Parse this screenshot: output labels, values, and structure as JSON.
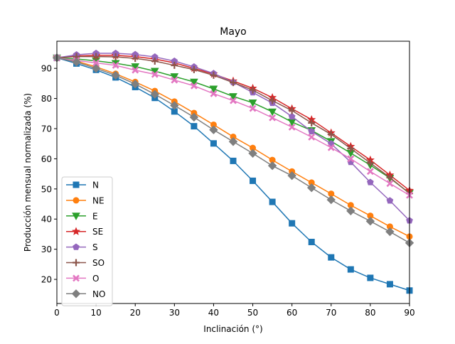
{
  "chart_data": {
    "type": "line",
    "title": "Mayo",
    "xlabel": "Inclinación (°)",
    "ylabel": "Producción mensual normalizada (%)",
    "xlim": [
      0,
      90
    ],
    "ylim": [
      12,
      99
    ],
    "x_ticks": [
      0,
      10,
      20,
      30,
      40,
      50,
      60,
      70,
      80,
      90
    ],
    "y_ticks": [
      20,
      30,
      40,
      50,
      60,
      70,
      80,
      90
    ],
    "grid": false,
    "legend_position": "lower-left",
    "x": [
      0,
      5,
      10,
      15,
      20,
      25,
      30,
      35,
      40,
      45,
      50,
      55,
      60,
      65,
      70,
      75,
      80,
      85,
      90
    ],
    "series": [
      {
        "name": "N",
        "color": "#1f77b4",
        "marker": "square",
        "values": [
          93.5,
          91.6,
          89.5,
          87.0,
          83.8,
          80.2,
          75.7,
          70.8,
          65.1,
          59.3,
          52.7,
          45.7,
          38.6,
          32.4,
          27.3,
          23.3,
          20.5,
          18.4,
          16.3
        ]
      },
      {
        "name": "NE",
        "color": "#ff7f0e",
        "marker": "circle",
        "values": [
          93.5,
          92.4,
          90.5,
          88.2,
          85.5,
          82.5,
          79.0,
          75.2,
          71.3,
          67.3,
          63.6,
          59.6,
          55.8,
          52.1,
          48.4,
          44.6,
          41.1,
          37.5,
          34.2
        ]
      },
      {
        "name": "E",
        "color": "#2ca02c",
        "marker": "triangle-down",
        "values": [
          93.5,
          93.1,
          92.5,
          91.7,
          90.6,
          89.1,
          87.3,
          85.5,
          83.2,
          80.7,
          78.6,
          75.6,
          72.2,
          69.4,
          65.8,
          61.9,
          57.9,
          53.6,
          48.6
        ]
      },
      {
        "name": "SE",
        "color": "#d62728",
        "marker": "star",
        "values": [
          93.5,
          94.1,
          94.3,
          94.3,
          93.9,
          93.1,
          91.8,
          90.0,
          88.1,
          85.8,
          83.4,
          80.3,
          76.6,
          73.0,
          68.6,
          64.1,
          59.6,
          54.6,
          49.5
        ]
      },
      {
        "name": "S",
        "color": "#9467bd",
        "marker": "pentagon",
        "values": [
          93.5,
          94.5,
          95.0,
          95.0,
          94.6,
          93.8,
          92.4,
          90.5,
          88.3,
          85.4,
          82.0,
          78.5,
          74.0,
          69.1,
          65.0,
          58.9,
          52.2,
          46.1,
          39.5
        ]
      },
      {
        "name": "SO",
        "color": "#8c564b",
        "marker": "plus",
        "values": [
          93.5,
          93.9,
          93.9,
          93.8,
          93.3,
          92.4,
          91.0,
          89.6,
          87.7,
          85.3,
          82.8,
          79.3,
          76.0,
          71.9,
          68.1,
          63.4,
          58.6,
          53.8,
          48.5
        ]
      },
      {
        "name": "O",
        "color": "#e377c2",
        "marker": "x",
        "values": [
          93.5,
          92.6,
          91.8,
          91.0,
          89.4,
          88.0,
          86.1,
          84.2,
          81.6,
          79.3,
          76.7,
          73.6,
          70.5,
          67.2,
          63.7,
          60.0,
          55.8,
          51.8,
          47.9
        ]
      },
      {
        "name": "NO",
        "color": "#7f7f7f",
        "marker": "diamond",
        "values": [
          93.5,
          92.1,
          90.0,
          87.7,
          84.8,
          81.4,
          77.7,
          73.8,
          69.6,
          65.7,
          61.8,
          57.7,
          54.4,
          50.4,
          46.4,
          42.7,
          39.3,
          35.8,
          32.1
        ]
      }
    ]
  }
}
